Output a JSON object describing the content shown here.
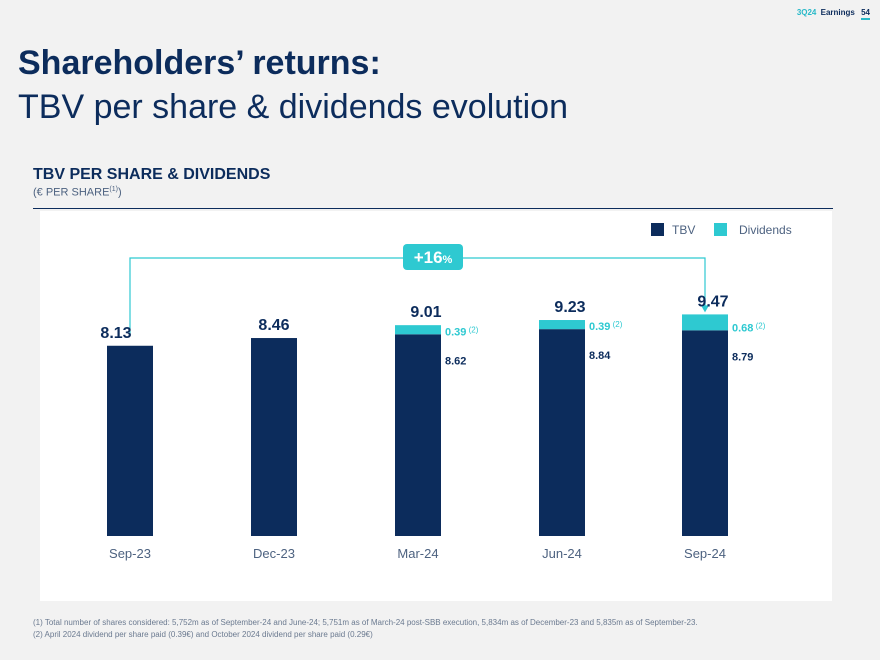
{
  "header": {
    "quarter": "3Q24",
    "label": "Earnings",
    "page": "54"
  },
  "title": {
    "line1": "Shareholders’ returns:",
    "line2": "TBV per share & dividends evolution"
  },
  "section": {
    "title": "TBV PER SHARE & DIVIDENDS",
    "subtitle_prefix": "(€ PER SHARE",
    "subtitle_sup": "(1)",
    "subtitle_suffix": ")"
  },
  "chart_data": {
    "type": "bar",
    "stacked": true,
    "categories": [
      "Sep-23",
      "Dec-23",
      "Mar-24",
      "Jun-24",
      "Sep-24"
    ],
    "series": [
      {
        "name": "TBV",
        "values": [
          8.13,
          8.46,
          8.62,
          8.84,
          8.79
        ],
        "color": "#0c2c5c"
      },
      {
        "name": "Dividends",
        "values": [
          0,
          0,
          0.39,
          0.39,
          0.68
        ],
        "color": "#2ec9d1"
      }
    ],
    "totals": [
      "8.13",
      "8.46",
      "9.01",
      "9.23",
      "9.47"
    ],
    "tbv_labels": [
      "",
      "",
      "8.62",
      "8.84",
      "8.79"
    ],
    "dividend_labels": [
      "",
      "",
      "0.39",
      "0.39",
      "0.68"
    ],
    "dividend_note": "(2)",
    "growth_annotation": {
      "text": "+16",
      "unit": "%",
      "from": "Sep-23",
      "to": "Sep-24"
    },
    "legend": [
      "TBV",
      "Dividends"
    ],
    "legend_position": "top-right"
  },
  "footnotes": [
    "(1) Total number of shares considered: 5,752m as of September-24 and June-24; 5,751m as of March-24 post-SBB execution, 5,834m as of December-23 and 5,835m as of September-23.",
    "(2) April 2024 dividend per share paid (0.39€) and October 2024 dividend per share paid (0.29€)"
  ]
}
